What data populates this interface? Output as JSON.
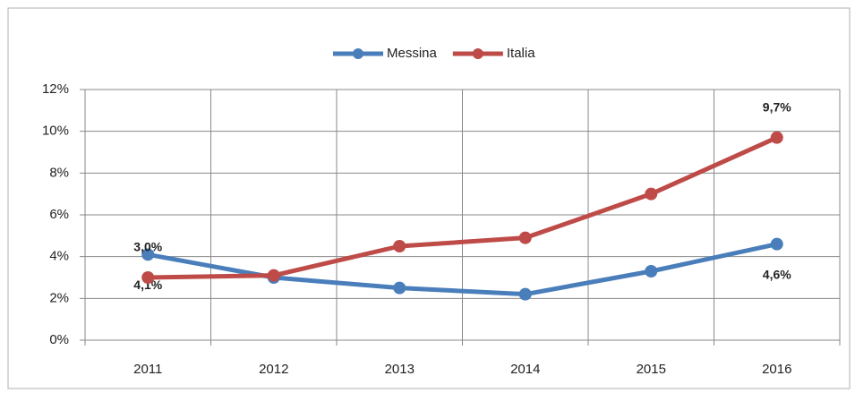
{
  "chart_data": {
    "type": "line",
    "categories": [
      "2011",
      "2012",
      "2013",
      "2014",
      "2015",
      "2016"
    ],
    "series": [
      {
        "name": "Messina",
        "color": "#4a7ebb",
        "values": [
          4.1,
          3.0,
          2.5,
          2.2,
          3.3,
          4.6
        ],
        "value_labels": [
          "4,1%",
          null,
          null,
          null,
          null,
          "4,6%"
        ]
      },
      {
        "name": "Italia",
        "color": "#be4b48",
        "values": [
          3.0,
          3.1,
          4.5,
          4.9,
          7.0,
          9.7
        ],
        "value_labels": [
          "3,0%",
          null,
          null,
          null,
          null,
          "9,7%"
        ]
      }
    ],
    "ylim": [
      0,
      12
    ],
    "yticks": [
      {
        "value": 0,
        "label": "0%"
      },
      {
        "value": 2,
        "label": "2%"
      },
      {
        "value": 4,
        "label": "4%"
      },
      {
        "value": 6,
        "label": "6%"
      },
      {
        "value": 8,
        "label": "8%"
      },
      {
        "value": 10,
        "label": "10%"
      },
      {
        "value": 12,
        "label": "12%"
      }
    ],
    "grid": true,
    "legend": "top"
  }
}
